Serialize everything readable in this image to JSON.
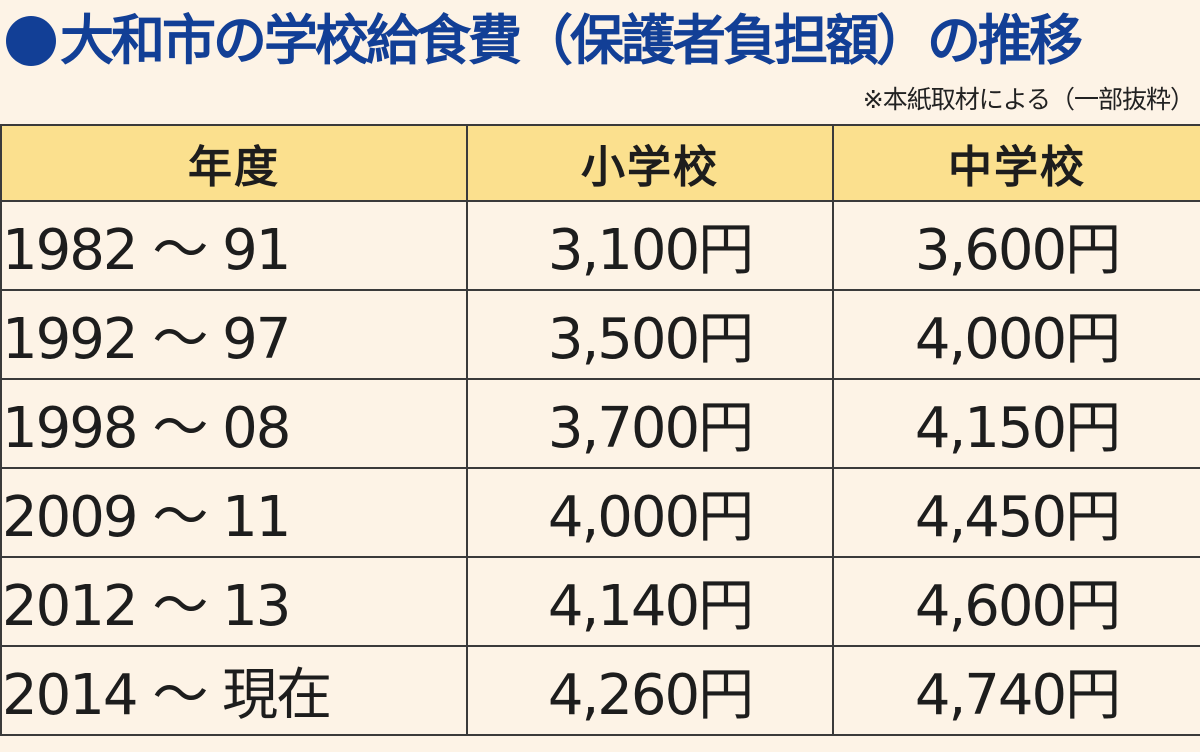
{
  "header": {
    "title": "大和市の学校給食費（保護者負担額）の推移",
    "source_note": "※本紙取材による（一部抜粋）"
  },
  "table": {
    "columns": [
      "年度",
      "小学校",
      "中学校"
    ],
    "rows": [
      {
        "year": "1982 ～ 91",
        "elementary": "3,100円",
        "junior_high": "3,600円"
      },
      {
        "year": "1992 ～ 97",
        "elementary": "3,500円",
        "junior_high": "4,000円"
      },
      {
        "year": "1998 ～ 08",
        "elementary": "3,700円",
        "junior_high": "4,150円"
      },
      {
        "year": "2009 ～ 11",
        "elementary": "4,000円",
        "junior_high": "4,450円"
      },
      {
        "year": "2012 ～ 13",
        "elementary": "4,140円",
        "junior_high": "4,600円"
      },
      {
        "year": "2014 ～ 現在",
        "elementary": "4,260円",
        "junior_high": "4,740円"
      }
    ]
  },
  "colors": {
    "title": "#123f96",
    "header_background": "#fbe08e",
    "page_background": "#fdf3e6",
    "border": "#3a3a3a"
  }
}
